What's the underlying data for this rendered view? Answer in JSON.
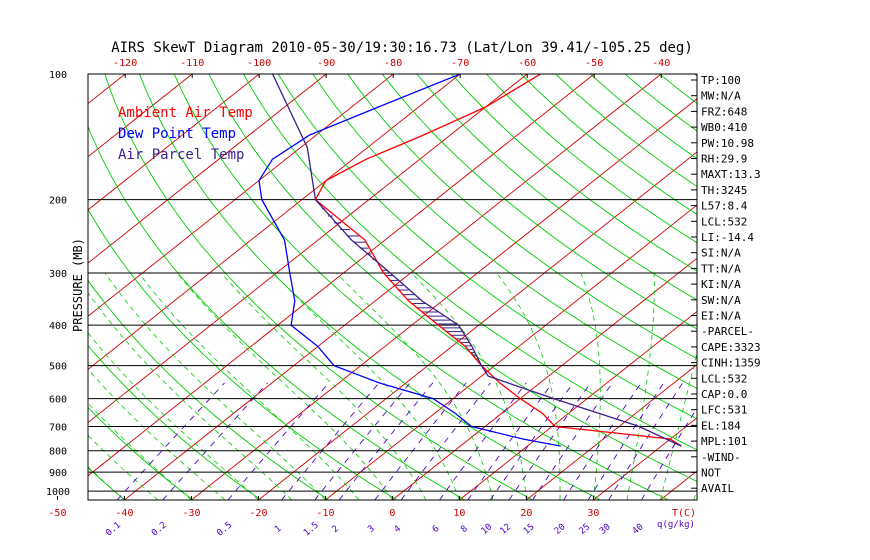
{
  "chart_data": {
    "type": "line",
    "title": "AIRS SkewT Diagram 2010-05-30/19:30:16.73 (Lat/Lon 39.41/-105.25 deg)",
    "ylabel": "PRESSURE (MB)",
    "pressure_ticks": [
      100,
      200,
      300,
      400,
      500,
      600,
      700,
      800,
      900,
      1000
    ],
    "top_temp_ticks": [
      -120,
      -110,
      -100,
      -90,
      -80,
      -70,
      -60,
      -50,
      -40
    ],
    "bottom_temp_ticks": [
      -50,
      -40,
      -30,
      -20,
      -10,
      0,
      10,
      20,
      30
    ],
    "temp_unit_label": "T(C)",
    "mixing_ratio_ticks": [
      "0.1",
      "0.2",
      "0.5",
      "1",
      "1.5",
      "2",
      "3",
      "4",
      "6",
      "8",
      "10",
      "12",
      "15",
      "20",
      "25",
      "30",
      "40"
    ],
    "mixing_ratio_unit_label": "q(g/kg)",
    "legend": [
      "Ambient Air Temp",
      "Dew Point Temp",
      "Air Parcel Temp"
    ],
    "colors": {
      "ambient": "#ff0000",
      "dewpoint": "#0000ff",
      "parcel": "#3c1e8c",
      "isotherm": "#d00000",
      "dry_adiabat": "#00cc00",
      "moist_adiabat": "#00cc00",
      "mixing_ratio": "#5000c8",
      "isobar": "#000000",
      "cape_hatch": "#3c1e8c"
    },
    "series": [
      {
        "name": "Ambient Air Temp",
        "points": [
          [
            100,
            -58
          ],
          [
            120,
            -60
          ],
          [
            140,
            -64
          ],
          [
            160,
            -68
          ],
          [
            180,
            -70
          ],
          [
            200,
            -68
          ],
          [
            250,
            -53
          ],
          [
            300,
            -44
          ],
          [
            350,
            -35
          ],
          [
            400,
            -26
          ],
          [
            450,
            -18
          ],
          [
            500,
            -12
          ],
          [
            550,
            -6
          ],
          [
            600,
            0
          ],
          [
            650,
            6
          ],
          [
            700,
            10.5
          ],
          [
            750,
            30
          ],
          [
            780,
            33
          ]
        ]
      },
      {
        "name": "Dew Point Temp",
        "points": [
          [
            100,
            -70
          ],
          [
            120,
            -76
          ],
          [
            140,
            -81
          ],
          [
            160,
            -82
          ],
          [
            180,
            -80
          ],
          [
            200,
            -76
          ],
          [
            250,
            -65
          ],
          [
            300,
            -58
          ],
          [
            350,
            -52
          ],
          [
            400,
            -48
          ],
          [
            450,
            -40
          ],
          [
            500,
            -34
          ],
          [
            550,
            -24
          ],
          [
            600,
            -13
          ],
          [
            650,
            -7
          ],
          [
            700,
            -2
          ],
          [
            750,
            8
          ],
          [
            780,
            15
          ]
        ]
      },
      {
        "name": "Air Parcel Temp",
        "points": [
          [
            100,
            -98
          ],
          [
            150,
            -79
          ],
          [
            200,
            -68
          ],
          [
            250,
            -55
          ],
          [
            300,
            -43
          ],
          [
            350,
            -33
          ],
          [
            400,
            -23
          ],
          [
            450,
            -17
          ],
          [
            500,
            -12
          ],
          [
            530,
            -9
          ],
          [
            600,
            5
          ],
          [
            700,
            23
          ],
          [
            780,
            33
          ]
        ]
      }
    ],
    "indices": [
      "TP:100",
      "MW:N/A",
      "FRZ:648",
      "WB0:410",
      "PW:10.98",
      "RH:29.9",
      "MAXT:13.3",
      "TH:3245",
      "L57:8.4",
      "LCL:532",
      "LI:-14.4",
      "SI:N/A",
      "TT:N/A",
      "KI:N/A",
      "SW:N/A",
      "EI:N/A",
      "-PARCEL-",
      "CAPE:3323",
      "CINH:1359",
      "LCL:532",
      "CAP:0.0",
      "LFC:531",
      "EL:184",
      "MPL:101",
      "-WIND-",
      "NOT",
      "AVAIL"
    ]
  }
}
